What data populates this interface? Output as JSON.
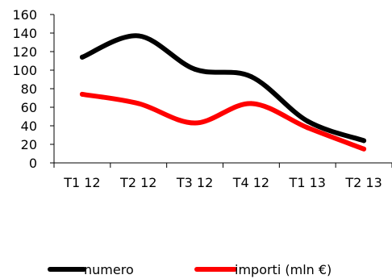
{
  "chart_data": {
    "type": "line",
    "title": "",
    "xlabel": "",
    "ylabel": "",
    "categories": [
      "T1 12",
      "T2 12",
      "T3 12",
      "T4 12",
      "T1 13",
      "T2 13"
    ],
    "ylim": [
      0,
      160
    ],
    "yticks": [
      0,
      20,
      40,
      60,
      80,
      100,
      120,
      140,
      160
    ],
    "grid": false,
    "smooth": true,
    "legend_position": "bottom",
    "series": [
      {
        "name": "numero",
        "color": "#000000",
        "values": [
          114,
          137,
          101,
          93,
          45,
          24
        ]
      },
      {
        "name": "importi (mln €)",
        "color": "#ff0000",
        "values": [
          74,
          64,
          43,
          64,
          38,
          15
        ]
      }
    ]
  }
}
